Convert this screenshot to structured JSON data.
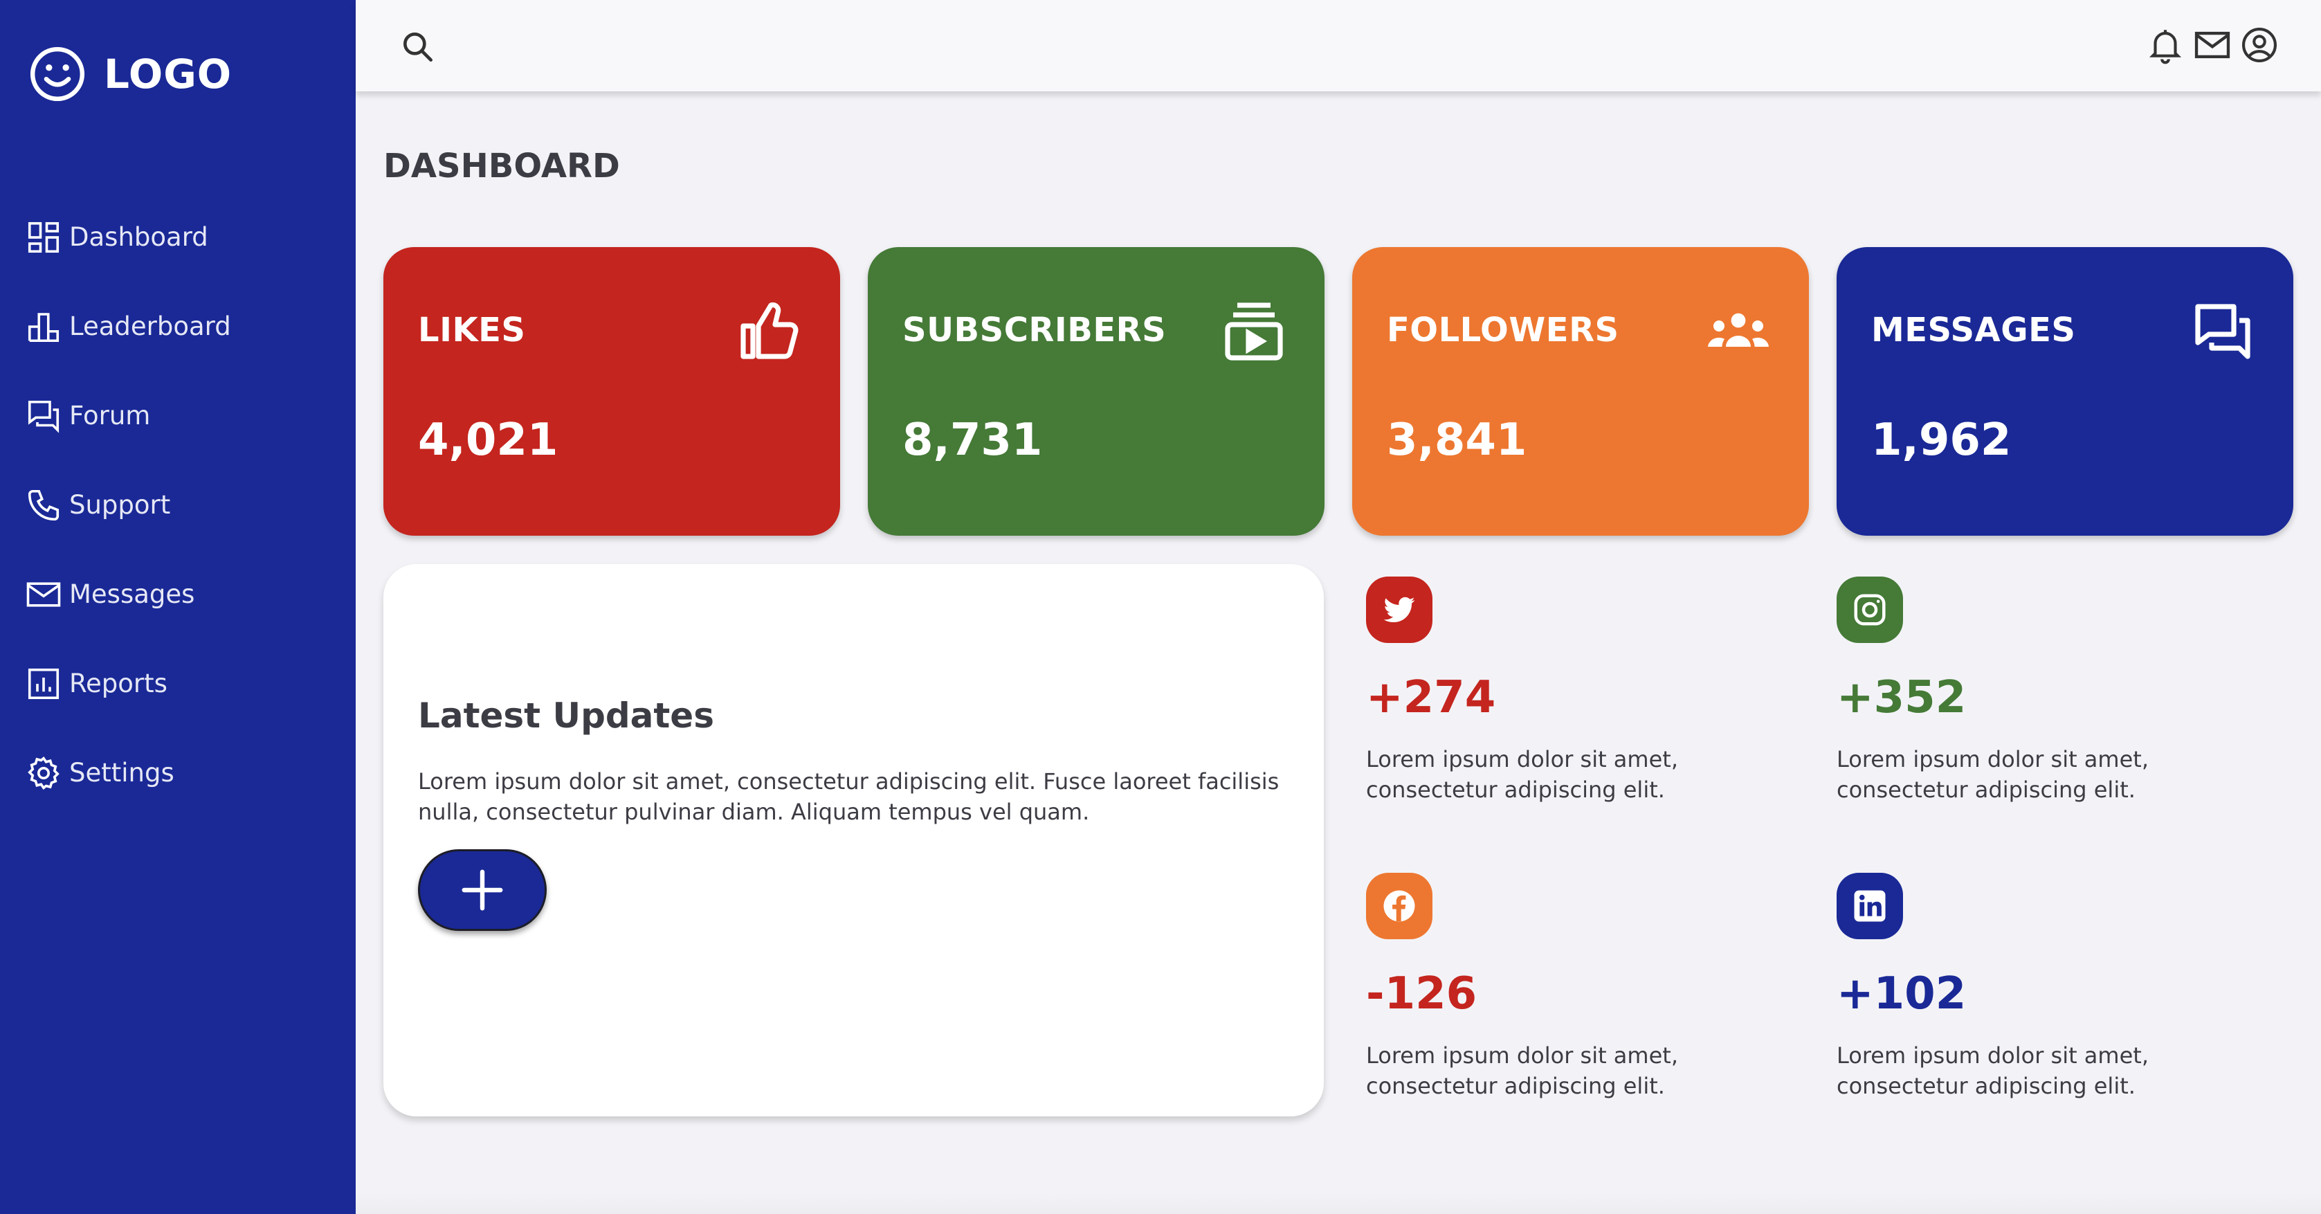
{
  "logo": {
    "text": "LOGO"
  },
  "sidebar": {
    "items": [
      {
        "label": "Dashboard",
        "icon": "dashboard-icon"
      },
      {
        "label": "Leaderboard",
        "icon": "leaderboard-icon"
      },
      {
        "label": "Forum",
        "icon": "forum-icon"
      },
      {
        "label": "Support",
        "icon": "phone-icon"
      },
      {
        "label": "Messages",
        "icon": "mail-icon"
      },
      {
        "label": "Reports",
        "icon": "reports-icon"
      },
      {
        "label": "Settings",
        "icon": "gear-icon"
      }
    ]
  },
  "header": {
    "icons": [
      "search-icon",
      "bell-icon",
      "mail-icon",
      "account-icon"
    ]
  },
  "page": {
    "title": "DASHBOARD"
  },
  "stats": [
    {
      "title": "LIKES",
      "value": "4,021",
      "color": "#c4251e",
      "icon": "thumbs-up-icon"
    },
    {
      "title": "SUBSCRIBERS",
      "value": "8,731",
      "color": "#457a37",
      "icon": "subscriptions-icon"
    },
    {
      "title": "FOLLOWERS",
      "value": "3,841",
      "color": "#ed7730",
      "icon": "group-icon"
    },
    {
      "title": "MESSAGES",
      "value": "1,962",
      "color": "#1a2996",
      "icon": "chat-icon"
    }
  ],
  "updates": {
    "title": "Latest Updates",
    "text": "Lorem ipsum dolor sit amet, consectetur adipiscing elit. Fusce laoreet facilisis nulla, consectetur pulvinar diam. Aliquam tempus vel quam.",
    "button": "add-icon"
  },
  "social": [
    {
      "network": "twitter",
      "delta": "+274",
      "color": "#c4251e",
      "text": "Lorem ipsum dolor sit amet, consectetur adipiscing elit."
    },
    {
      "network": "instagram",
      "delta": "+352",
      "color": "#457a37",
      "text": "Lorem ipsum dolor sit amet, consectetur adipiscing elit."
    },
    {
      "network": "facebook",
      "delta": "-126",
      "color": "#c4251e",
      "badge_color": "#ed7730",
      "text": "Lorem ipsum dolor sit amet, consectetur adipiscing elit."
    },
    {
      "network": "linkedin",
      "delta": "+102",
      "color": "#1a2996",
      "text": "Lorem ipsum dolor sit amet, consectetur adipiscing elit."
    }
  ],
  "colors": {
    "sidebar": "#1a2996",
    "background": "#f3f3f7",
    "red": "#c4251e",
    "green": "#457a37",
    "orange": "#ed7730",
    "navy": "#1a2996"
  }
}
